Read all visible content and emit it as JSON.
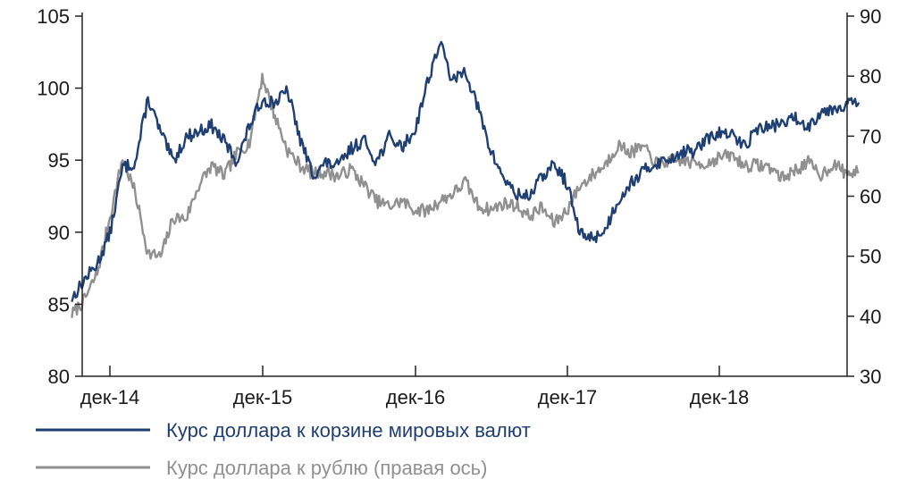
{
  "chart_data": {
    "type": "line",
    "title": "",
    "x_ticks": [
      "дек-14",
      "дек-15",
      "дек-16",
      "дек-17",
      "дек-18"
    ],
    "y_left": {
      "range": [
        80,
        105
      ],
      "ticks": [
        80,
        85,
        90,
        95,
        100,
        105
      ]
    },
    "y_right": {
      "range": [
        30,
        90
      ],
      "ticks": [
        30,
        40,
        50,
        60,
        70,
        80,
        90
      ]
    },
    "grid": false,
    "legend_position": "bottom-left",
    "series": [
      {
        "name": "Курс доллара к корзине мировых валют",
        "axis": "left",
        "color": "#1f3f73",
        "x": [
          "2014-09",
          "2014-10",
          "2014-11",
          "2014-12",
          "2015-01",
          "2015-02",
          "2015-03",
          "2015-04",
          "2015-05",
          "2015-06",
          "2015-07",
          "2015-08",
          "2015-09",
          "2015-10",
          "2015-11",
          "2015-12",
          "2016-01",
          "2016-02",
          "2016-03",
          "2016-04",
          "2016-05",
          "2016-06",
          "2016-07",
          "2016-08",
          "2016-09",
          "2016-10",
          "2016-11",
          "2016-12",
          "2017-01",
          "2017-02",
          "2017-03",
          "2017-04",
          "2017-05",
          "2017-06",
          "2017-07",
          "2017-08",
          "2017-09",
          "2017-10",
          "2017-11",
          "2017-12",
          "2018-01",
          "2018-02",
          "2018-03",
          "2018-04",
          "2018-05",
          "2018-06",
          "2018-07",
          "2018-08",
          "2018-09",
          "2018-10",
          "2018-11",
          "2018-12",
          "2019-01",
          "2019-02",
          "2019-03",
          "2019-04",
          "2019-05",
          "2019-06",
          "2019-07",
          "2019-08",
          "2019-09",
          "2019-10",
          "2019-11"
        ],
        "values": [
          85.4,
          86.7,
          87.8,
          89.9,
          94.5,
          94.8,
          99.3,
          96.9,
          94.9,
          96.6,
          97.0,
          97.4,
          96.3,
          94.9,
          97.4,
          99.2,
          99.0,
          99.8,
          96.4,
          94.0,
          94.8,
          94.6,
          95.8,
          96.4,
          94.9,
          96.6,
          95.9,
          97.0,
          100.4,
          103.2,
          100.4,
          101.3,
          98.6,
          95.6,
          93.8,
          92.6,
          92.5,
          93.8,
          94.7,
          93.4,
          89.9,
          89.6,
          90.1,
          92.2,
          93.4,
          94.2,
          94.8,
          95.0,
          95.6,
          95.6,
          96.4,
          96.9,
          96.7,
          96.0,
          97.2,
          97.3,
          97.6,
          97.9,
          97.3,
          98.4,
          98.6,
          98.9,
          99.0
        ]
      },
      {
        "name": "Курс доллара к рублю (правая ось)",
        "axis": "right",
        "color": "#909090",
        "x": [
          "2014-09",
          "2014-10",
          "2014-11",
          "2014-12",
          "2015-01",
          "2015-02",
          "2015-03",
          "2015-04",
          "2015-05",
          "2015-06",
          "2015-07",
          "2015-08",
          "2015-09",
          "2015-10",
          "2015-11",
          "2015-12",
          "2016-01",
          "2016-02",
          "2016-03",
          "2016-04",
          "2016-05",
          "2016-06",
          "2016-07",
          "2016-08",
          "2016-09",
          "2016-10",
          "2016-11",
          "2016-12",
          "2017-01",
          "2017-02",
          "2017-03",
          "2017-04",
          "2017-05",
          "2017-06",
          "2017-07",
          "2017-08",
          "2017-09",
          "2017-10",
          "2017-11",
          "2017-12",
          "2018-01",
          "2018-02",
          "2018-03",
          "2018-04",
          "2018-05",
          "2018-06",
          "2018-07",
          "2018-08",
          "2018-09",
          "2018-10",
          "2018-11",
          "2018-12",
          "2019-01",
          "2019-02",
          "2019-03",
          "2019-04",
          "2019-05",
          "2019-06",
          "2019-07",
          "2019-08",
          "2019-09",
          "2019-10",
          "2019-11"
        ],
        "values": [
          40.3,
          42.7,
          47.2,
          56.5,
          66.3,
          60.5,
          50.5,
          49.9,
          56.4,
          56.3,
          61.8,
          65.1,
          63.4,
          67.1,
          69.0,
          80.0,
          73.3,
          67.6,
          65.1,
          63.8,
          64.0,
          63.3,
          64.5,
          61.9,
          59.2,
          58.3,
          59.2,
          57.7,
          57.6,
          59.2,
          60.4,
          62.4,
          58.4,
          57.7,
          58.8,
          58.5,
          56.6,
          58.1,
          55.5,
          57.7,
          61.6,
          63.5,
          65.2,
          68.5,
          67.3,
          68.2,
          65.5,
          65.8,
          66.0,
          65.5,
          65.4,
          66.5,
          66.8,
          65.1,
          65.2,
          64.8,
          63.0,
          64.4,
          65.6,
          63.5,
          65.4,
          63.8,
          64.0
        ]
      }
    ]
  }
}
